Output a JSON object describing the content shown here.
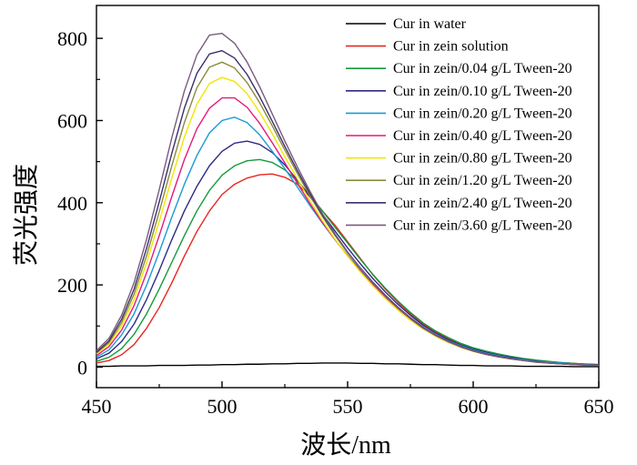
{
  "chart_data": {
    "type": "line",
    "title": "",
    "xlabel": "波长/nm",
    "ylabel": "荧光强度",
    "xlim": [
      450,
      650
    ],
    "ylim": [
      -50,
      880
    ],
    "x_ticks": [
      450,
      500,
      550,
      600,
      650
    ],
    "x_tick_labels": [
      "450",
      "500",
      "550",
      "600",
      "650"
    ],
    "y_ticks": [
      0,
      200,
      400,
      600,
      800
    ],
    "y_tick_labels": [
      "0",
      "200",
      "400",
      "600",
      "800"
    ],
    "grid": false,
    "legend_position": "top-right",
    "x": [
      450,
      455,
      460,
      465,
      470,
      475,
      480,
      485,
      490,
      495,
      500,
      505,
      510,
      515,
      520,
      525,
      530,
      535,
      540,
      545,
      550,
      555,
      560,
      565,
      570,
      575,
      580,
      585,
      590,
      595,
      600,
      605,
      610,
      615,
      620,
      625,
      630,
      635,
      640,
      645,
      650
    ],
    "series": [
      {
        "name": "Cur in water",
        "color": "#000000",
        "values": [
          2,
          2,
          3,
          3,
          3,
          4,
          4,
          4,
          5,
          5,
          6,
          6,
          7,
          7,
          8,
          8,
          9,
          9,
          10,
          10,
          10,
          9,
          9,
          8,
          8,
          7,
          6,
          6,
          5,
          4,
          4,
          3,
          3,
          3,
          2,
          2,
          2,
          2,
          1,
          1,
          1
        ]
      },
      {
        "name": "Cur in zein solution",
        "color": "#e8261f",
        "values": [
          10,
          16,
          30,
          55,
          95,
          145,
          205,
          270,
          330,
          380,
          420,
          445,
          460,
          468,
          470,
          462,
          445,
          415,
          380,
          345,
          305,
          265,
          225,
          190,
          158,
          130,
          105,
          85,
          70,
          57,
          46,
          38,
          31,
          25,
          20,
          16,
          13,
          11,
          9,
          7,
          6
        ]
      },
      {
        "name": "Cur in zein/0.04 g/L Tween-20",
        "color": "#159a3c",
        "values": [
          14,
          24,
          45,
          80,
          130,
          190,
          255,
          320,
          380,
          430,
          467,
          490,
          502,
          505,
          498,
          480,
          452,
          418,
          380,
          340,
          302,
          263,
          226,
          192,
          161,
          133,
          108,
          88,
          72,
          58,
          47,
          39,
          32,
          26,
          21,
          17,
          14,
          11,
          9,
          7,
          6
        ]
      },
      {
        "name": "Cur in zein/0.10 g/L Tween-20",
        "color": "#2f2a85",
        "values": [
          20,
          34,
          62,
          105,
          165,
          235,
          310,
          380,
          440,
          490,
          525,
          545,
          550,
          542,
          522,
          492,
          455,
          415,
          372,
          331,
          290,
          252,
          216,
          183,
          153,
          126,
          102,
          83,
          67,
          54,
          44,
          36,
          29,
          24,
          19,
          15,
          12,
          10,
          8,
          7,
          6
        ]
      },
      {
        "name": "Cur in zein/0.20 g/L Tween-20",
        "color": "#1b9ad6",
        "values": [
          24,
          42,
          78,
          130,
          200,
          280,
          365,
          445,
          515,
          570,
          600,
          608,
          595,
          565,
          525,
          483,
          438,
          393,
          350,
          310,
          272,
          236,
          203,
          172,
          144,
          119,
          97,
          79,
          64,
          52,
          42,
          34,
          28,
          22,
          18,
          14,
          12,
          10,
          8,
          6,
          5
        ]
      },
      {
        "name": "Cur in zein/0.40 g/L Tween-20",
        "color": "#e6197c",
        "values": [
          28,
          50,
          90,
          150,
          230,
          320,
          415,
          505,
          580,
          630,
          655,
          655,
          632,
          593,
          546,
          497,
          447,
          398,
          352,
          310,
          271,
          234,
          200,
          169,
          141,
          116,
          94,
          76,
          61,
          49,
          39,
          31,
          25,
          20,
          16,
          13,
          10,
          8,
          7,
          5,
          4
        ]
      },
      {
        "name": "Cur in zein/0.80 g/L Tween-20",
        "color": "#f2e600",
        "values": [
          32,
          56,
          100,
          165,
          255,
          355,
          460,
          560,
          640,
          690,
          705,
          695,
          665,
          620,
          568,
          512,
          458,
          405,
          356,
          311,
          270,
          232,
          198,
          167,
          139,
          114,
          93,
          75,
          60,
          48,
          38,
          31,
          25,
          20,
          16,
          12,
          10,
          8,
          6,
          5,
          4
        ]
      },
      {
        "name": "Cur in zein/1.20 g/L Tween-20",
        "color": "#8a8a3c",
        "values": [
          34,
          60,
          108,
          178,
          272,
          378,
          490,
          595,
          680,
          730,
          742,
          728,
          692,
          643,
          587,
          528,
          471,
          417,
          366,
          320,
          278,
          240,
          205,
          173,
          144,
          118,
          96,
          77,
          62,
          50,
          40,
          32,
          26,
          21,
          16,
          13,
          10,
          8,
          6,
          5,
          4
        ]
      },
      {
        "name": "Cur in zein/2.40 g/L Tween-20",
        "color": "#3b2f6e",
        "values": [
          36,
          64,
          116,
          190,
          290,
          402,
          520,
          630,
          715,
          762,
          770,
          752,
          712,
          658,
          598,
          537,
          478,
          422,
          370,
          323,
          280,
          242,
          207,
          175,
          146,
          120,
          97,
          78,
          63,
          50,
          40,
          32,
          26,
          21,
          16,
          13,
          10,
          8,
          6,
          5,
          4
        ]
      },
      {
        "name": "Cur in zein/3.60 g/L Tween-20",
        "color": "#7a5a7e",
        "values": [
          40,
          70,
          126,
          206,
          312,
          432,
          558,
          672,
          760,
          808,
          812,
          788,
          742,
          682,
          616,
          550,
          487,
          428,
          373,
          324,
          280,
          241,
          205,
          173,
          144,
          118,
          95,
          77,
          62,
          49,
          39,
          31,
          25,
          20,
          16,
          12,
          10,
          8,
          6,
          5,
          4
        ]
      }
    ]
  }
}
